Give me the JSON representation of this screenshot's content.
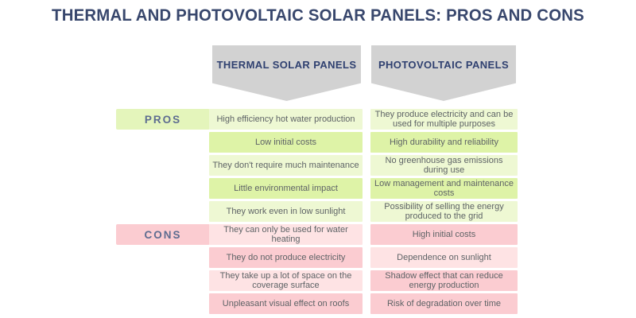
{
  "title": "THERMAL AND PHOTOVOLTAIC SOLAR PANELS: PROS AND CONS",
  "sections": {
    "pros_label": "PROS",
    "cons_label": "CONS"
  },
  "columns": [
    {
      "header": "THERMAL SOLAR PANELS",
      "pros": [
        "High efficiency hot water production",
        "Low initial costs",
        "They don't require much maintenance",
        "Little environmental impact",
        "They work even in low sunlight"
      ],
      "cons": [
        "They can only be used for water heating",
        "They do not produce electricity",
        "They take up a lot of space on the coverage surface",
        "Unpleasant visual effect on roofs"
      ]
    },
    {
      "header": "PHOTOVOLTAIC PANELS",
      "pros": [
        "They produce electricity and can be used for multiple purposes",
        "High durability and reliability",
        "No greenhouse gas emissions during use",
        "Low management and maintenance costs",
        "Possibility of selling the energy produced to the grid"
      ],
      "cons": [
        "High initial costs",
        "Dependence on sunlight",
        "Shadow effect that can reduce energy production",
        "Risk of degradation over time"
      ]
    }
  ],
  "colors": {
    "title_navy": "#38476d",
    "header_navy": "#2f4070",
    "label_blue_gray": "#5d6c90",
    "banner_gray": "#d2d2d2",
    "green_pale": "#eef8d3",
    "green_medium": "#def3a7",
    "pink_pale": "#fee3e4",
    "pink_medium": "#fbccd1",
    "pros_label_bg": "#e4f5bb",
    "cons_label_bg": "#fbccd1",
    "cell_text": "#5e6366",
    "background": "#ffffff"
  }
}
